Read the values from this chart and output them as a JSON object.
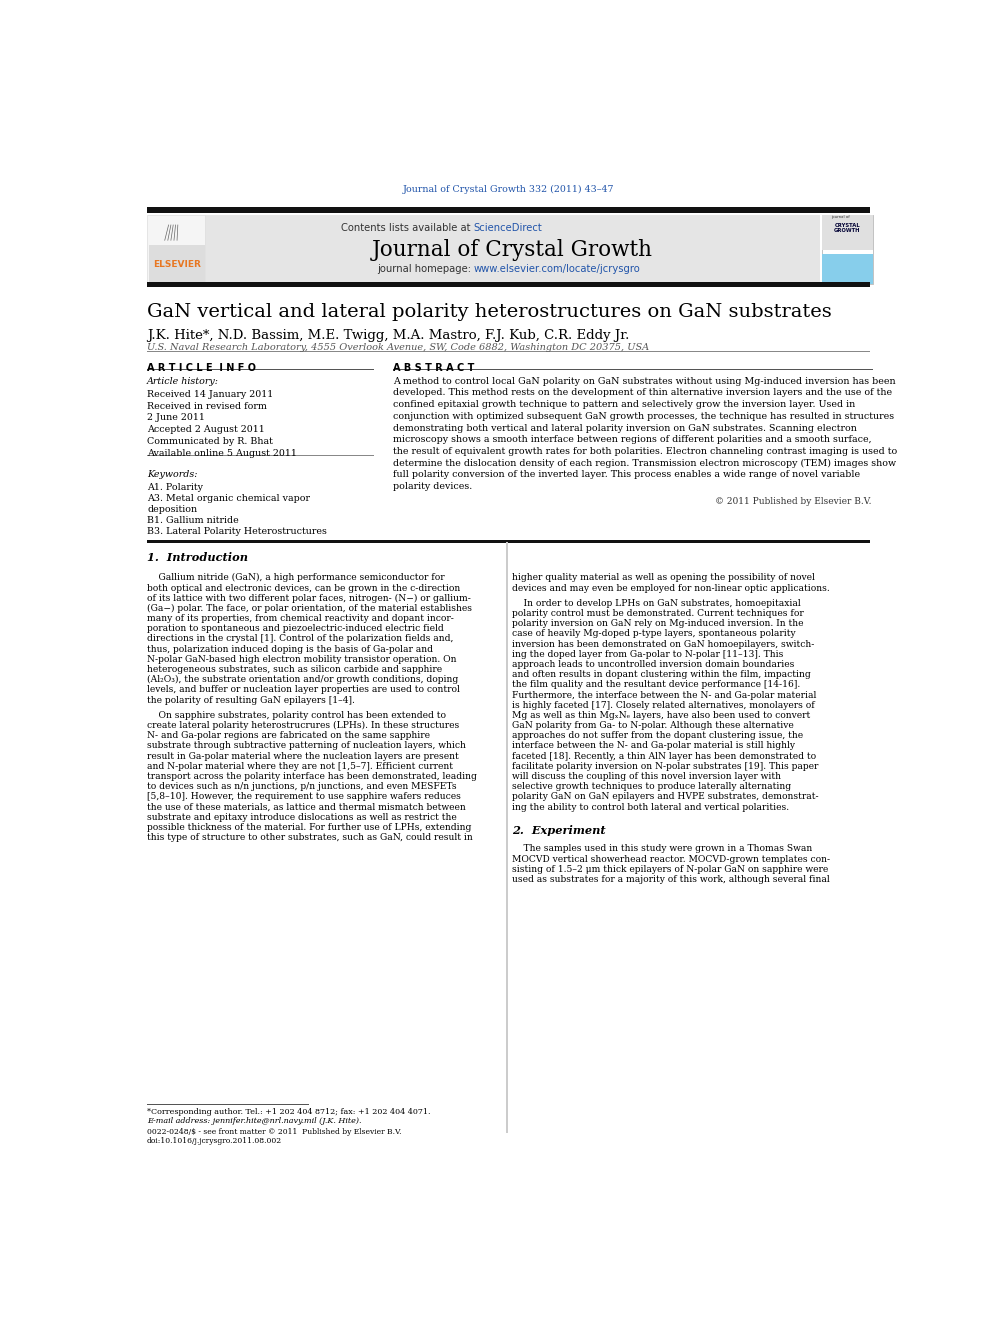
{
  "journal_ref": "Journal of Crystal Growth 332 (2011) 43–47",
  "contents_line": "Contents lists available at ScienceDirect",
  "journal_name": "Journal of Crystal Growth",
  "journal_homepage": "journal homepage: www.elsevier.com/locate/jcrysgro",
  "title": "GaN vertical and lateral polarity heterostructures on GaN substrates",
  "authors": "J.K. Hite*, N.D. Bassim, M.E. Twigg, M.A. Mastro, F.J. Kub, C.R. Eddy Jr.",
  "affiliation": "U.S. Naval Research Laboratory, 4555 Overlook Avenue, SW, Code 6882, Washington DC 20375, USA",
  "article_info_title": "A R T I C L E  I N F O",
  "abstract_title": "A B S T R A C T",
  "article_history_label": "Article history:",
  "received": "Received 14 January 2011",
  "received_revised": "Received in revised form",
  "revised_date": "2 June 2011",
  "accepted": "Accepted 2 August 2011",
  "communicated": "Communicated by R. Bhat",
  "available": "Available online 5 August 2011",
  "keywords_label": "Keywords:",
  "keyword1": "A1. Polarity",
  "keyword2": "A3. Metal organic chemical vapor",
  "keyword2b": "deposition",
  "keyword3": "B1. Gallium nitride",
  "keyword4": "B3. Lateral Polarity Heterostructures",
  "copyright": "© 2011 Published by Elsevier B.V.",
  "intro_title": "1.  Introduction",
  "exp_title": "2.  Experiment",
  "footnote_corresponding": "*Corresponding author. Tel.: +1 202 404 8712; fax: +1 202 404 4071.",
  "footnote_email": "E-mail address: jennifer.hite@nrl.navy.mil (J.K. Hite).",
  "footnote_issn": "0022-0248/$ - see front matter © 2011  Published by Elsevier B.V.",
  "footnote_doi": "doi:10.1016/j.jcrysgro.2011.08.002",
  "bg_color": "#ffffff",
  "blue_link_color": "#2255aa",
  "orange_color": "#e87722",
  "abstract_lines": [
    "A method to control local GaN polarity on GaN substrates without using Mg-induced inversion has been",
    "developed. This method rests on the development of thin alternative inversion layers and the use of the",
    "confined epitaxial growth technique to pattern and selectively grow the inversion layer. Used in",
    "conjunction with optimized subsequent GaN growth processes, the technique has resulted in structures",
    "demonstrating both vertical and lateral polarity inversion on GaN substrates. Scanning electron",
    "microscopy shows a smooth interface between regions of different polarities and a smooth surface,",
    "the result of equivalent growth rates for both polarities. Electron channeling contrast imaging is used to",
    "determine the dislocation density of each region. Transmission electron microscopy (TEM) images show",
    "full polarity conversion of the inverted layer. This process enables a wide range of novel variable",
    "polarity devices."
  ],
  "intro_left_lines": [
    "    Gallium nitride (GaN), a high performance semiconductor for",
    "both optical and electronic devices, can be grown in the c-direction",
    "of its lattice with two different polar faces, nitrogen- (N−) or gallium-",
    "(Ga−) polar. The face, or polar orientation, of the material establishes",
    "many of its properties, from chemical reactivity and dopant incor-",
    "poration to spontaneous and piezoelectric-induced electric field",
    "directions in the crystal [1]. Control of the polarization fields and,",
    "thus, polarization induced doping is the basis of Ga-polar and",
    "N-polar GaN-based high electron mobility transistor operation. On",
    "heterogeneous substrates, such as silicon carbide and sapphire",
    "(Al₂O₃), the substrate orientation and/or growth conditions, doping",
    "levels, and buffer or nucleation layer properties are used to control",
    "the polarity of resulting GaN epilayers [1–4].",
    "",
    "    On sapphire substrates, polarity control has been extended to",
    "create lateral polarity heterostrucrures (LPHs). In these structures",
    "N- and Ga-polar regions are fabricated on the same sapphire",
    "substrate through subtractive patterning of nucleation layers, which",
    "result in Ga-polar material where the nucleation layers are present",
    "and N-polar material where they are not [1,5–7]. Efficient current",
    "transport across the polarity interface has been demonstrated, leading",
    "to devices such as n/n junctions, p/n junctions, and even MESFETs",
    "[5,8–10]. However, the requirement to use sapphire wafers reduces",
    "the use of these materials, as lattice and thermal mismatch between",
    "substrate and epitaxy introduce dislocations as well as restrict the",
    "possible thickness of the material. For further use of LPHs, extending",
    "this type of structure to other substrates, such as GaN, could result in"
  ],
  "intro_right_lines": [
    "higher quality material as well as opening the possibility of novel",
    "devices and may even be employed for non-linear optic applications.",
    "",
    "    In order to develop LPHs on GaN substrates, homoepitaxial",
    "polarity control must be demonstrated. Current techniques for",
    "polarity inversion on GaN rely on Mg-induced inversion. In the",
    "case of heavily Mg-doped p-type layers, spontaneous polarity",
    "inversion has been demonstrated on GaN homoepilayers, switch-",
    "ing the doped layer from Ga-polar to N-polar [11–13]. This",
    "approach leads to uncontrolled inversion domain boundaries",
    "and often results in dopant clustering within the film, impacting",
    "the film quality and the resultant device performance [14-16].",
    "Furthermore, the interface between the N- and Ga-polar material",
    "is highly faceted [17]. Closely related alternatives, monolayers of",
    "Mg as well as thin MgₓNₑ layers, have also been used to convert",
    "GaN polarity from Ga- to N-polar. Although these alternative",
    "approaches do not suffer from the dopant clustering issue, the",
    "interface between the N- and Ga-polar material is still highly",
    "faceted [18]. Recently, a thin AlN layer has been demonstrated to",
    "facilitate polarity inversion on N-polar substrates [19]. This paper",
    "will discuss the coupling of this novel inversion layer with",
    "selective growth techniques to produce laterally alternating",
    "polarity GaN on GaN epilayers and HVPE substrates, demonstrat-",
    "ing the ability to control both lateral and vertical polarities."
  ],
  "exp_right_lines": [
    "    The samples used in this study were grown in a Thomas Swan",
    "MOCVD vertical showerhead reactor. MOCVD-grown templates con-",
    "sisting of 1.5–2 μm thick epilayers of N-polar GaN on sapphire were",
    "used as substrates for a majority of this work, although several final"
  ]
}
